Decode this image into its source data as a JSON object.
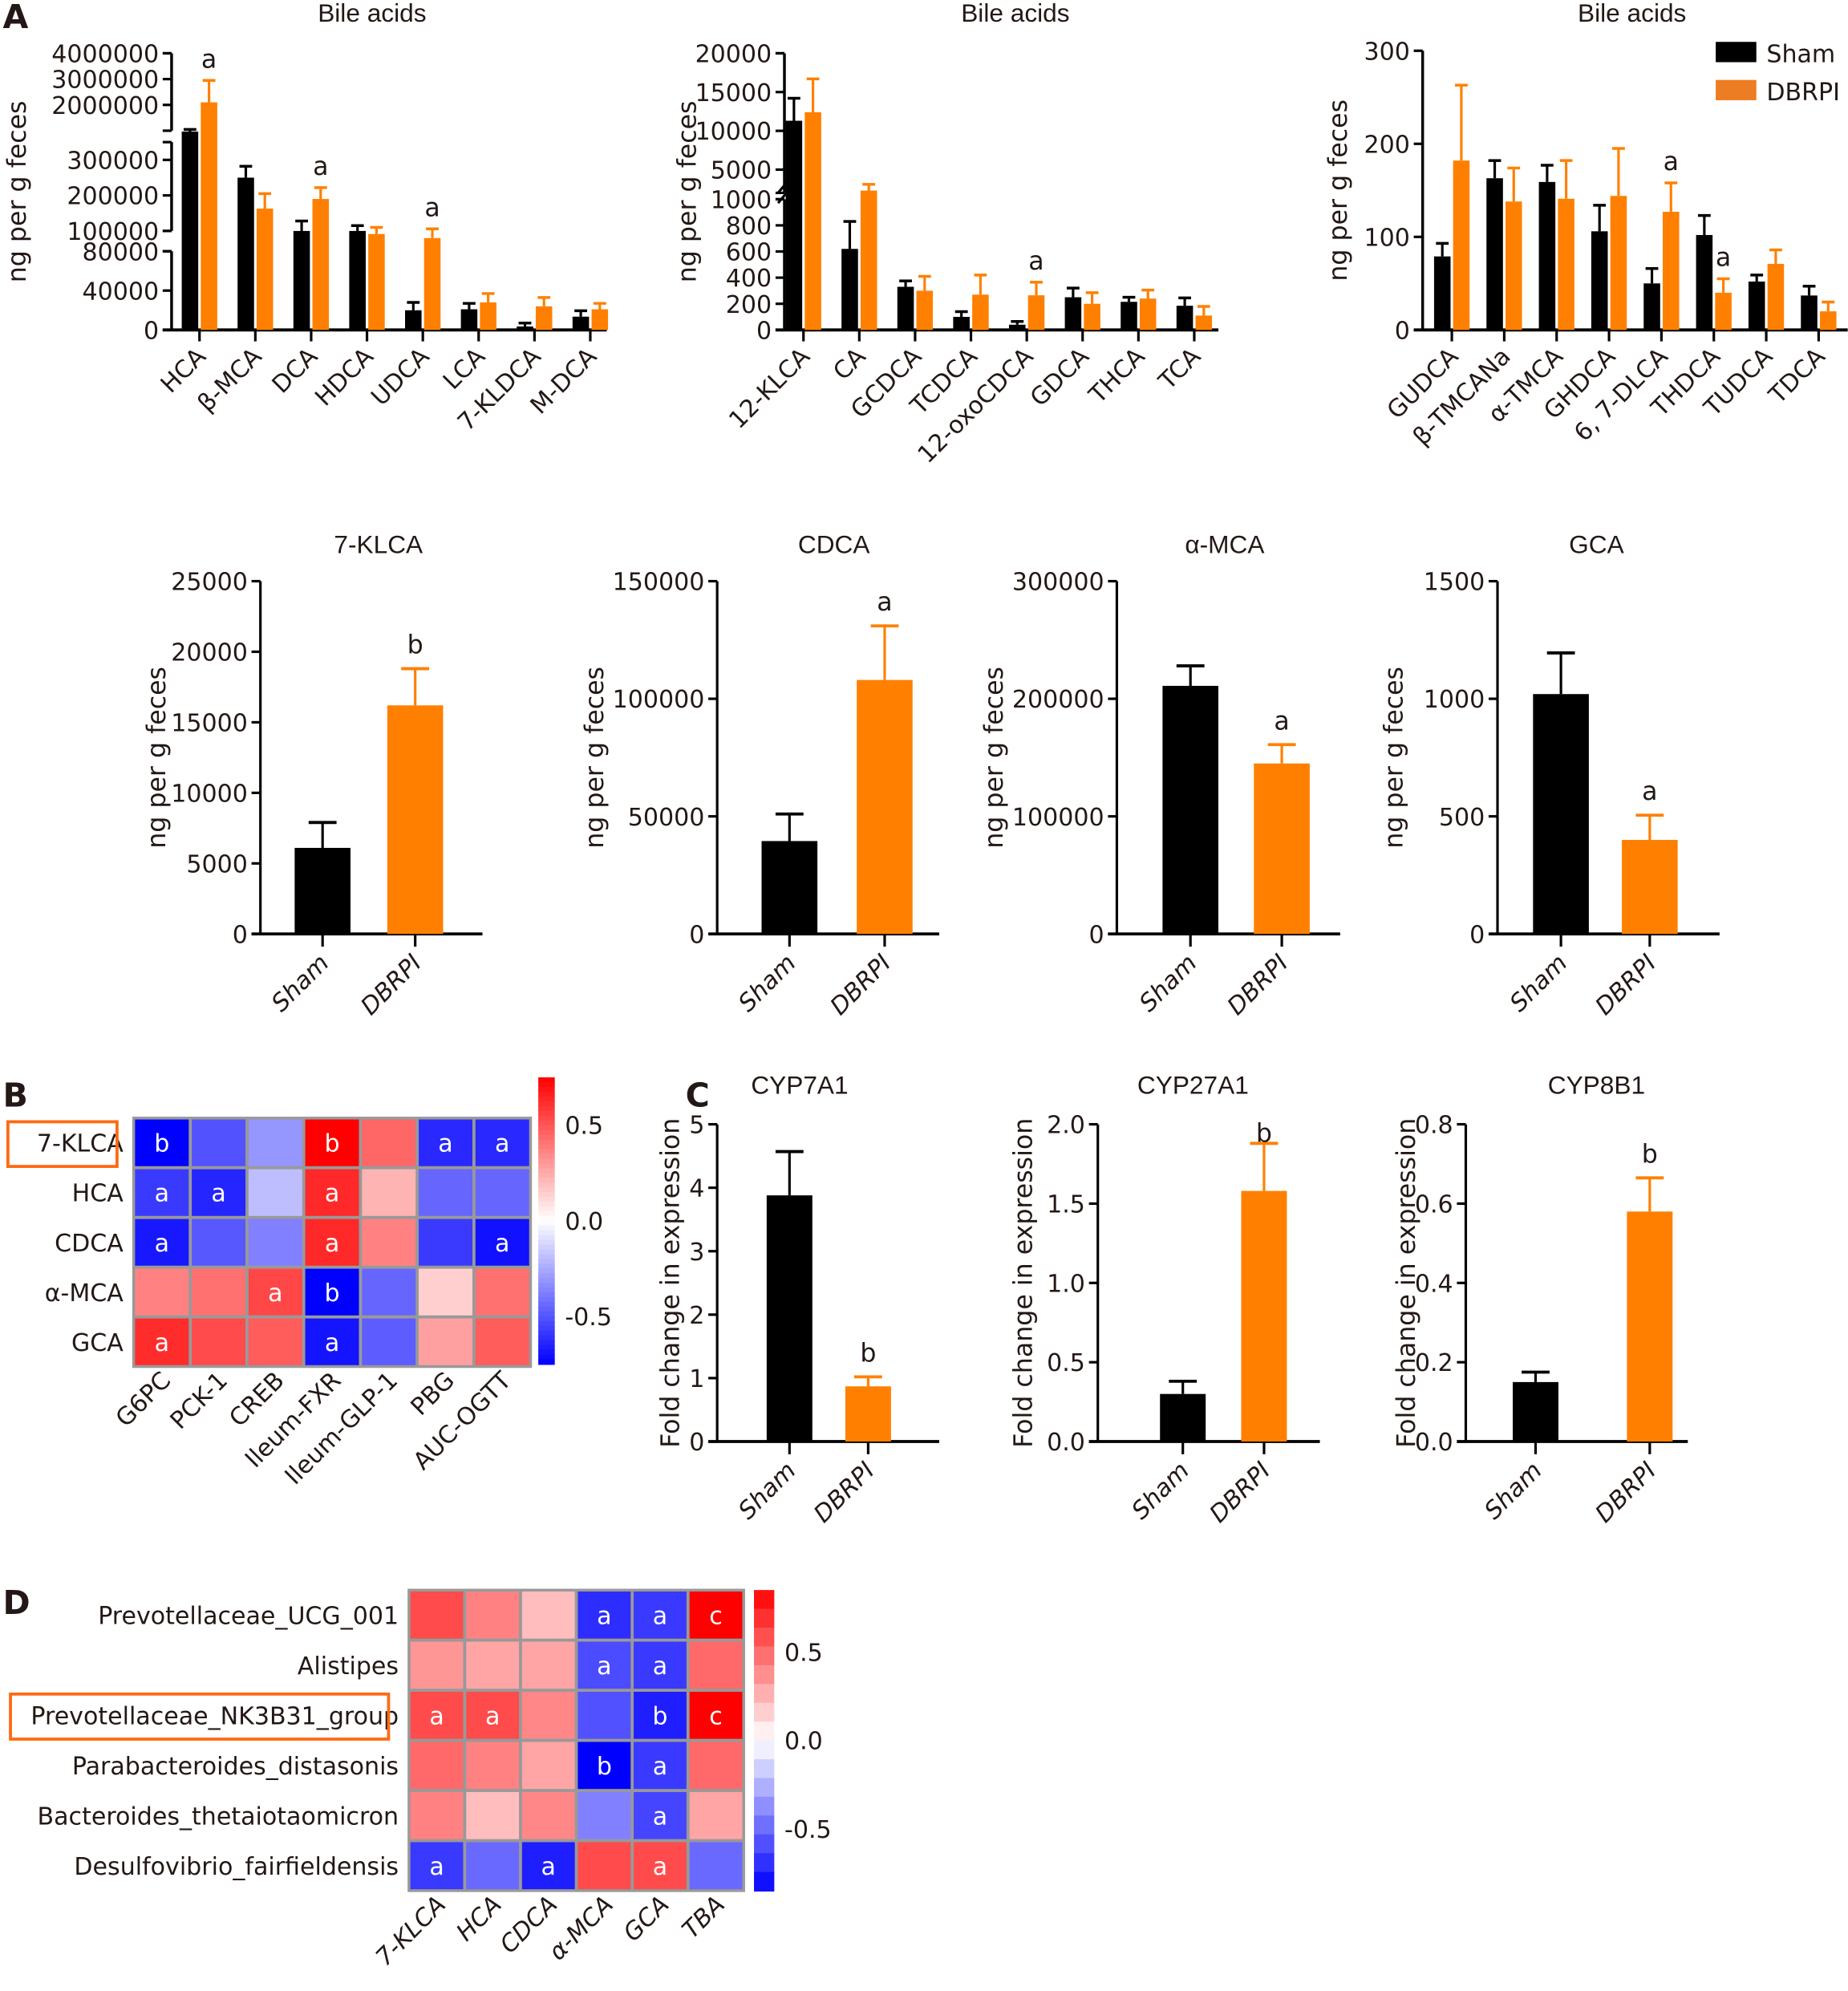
{
  "legend": {
    "series": [
      {
        "name": "Sham",
        "color": "#000000"
      },
      {
        "name": "DBRPI",
        "color": "#ff8000"
      }
    ]
  },
  "panels": {
    "A": "A",
    "B": "B",
    "C": "C",
    "D": "D"
  },
  "chart_data": [
    {
      "id": "A1",
      "type": "bar",
      "title": "Bile acids",
      "ylabel": "ng per g feces",
      "y_axis_segments": [
        {
          "range": [
            0,
            80000
          ],
          "ticks": [
            0,
            40000,
            80000
          ],
          "tick_labels": [
            "0",
            "40000",
            "80000"
          ]
        },
        {
          "range": [
            100000,
            350000
          ],
          "ticks": [
            100000,
            200000,
            300000
          ],
          "tick_labels": [
            "100000",
            "200000",
            "300000"
          ]
        },
        {
          "range": [
            1000000,
            4000000
          ],
          "ticks": [
            2000000,
            3000000,
            4000000
          ],
          "tick_labels": [
            "2000000",
            "3000000",
            "4000000"
          ]
        }
      ],
      "categories": [
        "HCA",
        "β-MCA",
        "DCA",
        "HDCA",
        "UDCA",
        "LCA",
        "7-KLDCA",
        "M-DCA"
      ],
      "series": [
        {
          "name": "Sham",
          "values": [
            950000,
            250000,
            100000,
            100000,
            20000,
            21000,
            3500,
            13500
          ],
          "error_upper": [
            1050000,
            282000,
            128000,
            115000,
            28000,
            27000,
            7000,
            19500
          ]
        },
        {
          "name": "DBRPI",
          "values": [
            2100000,
            163000,
            190000,
            97000,
            93000,
            28000,
            24000,
            21000
          ],
          "error_upper": [
            2950000,
            205000,
            222000,
            110000,
            106000,
            37000,
            33000,
            27000
          ]
        }
      ],
      "annotations": [
        {
          "category": "HCA",
          "series": "DBRPI",
          "text": "a"
        },
        {
          "category": "DCA",
          "series": "DBRPI",
          "text": "a"
        },
        {
          "category": "UDCA",
          "series": "DBRPI",
          "text": "a"
        }
      ]
    },
    {
      "id": "A2",
      "type": "bar",
      "title": "Bile acids",
      "ylabel": "ng per g feces",
      "y_axis_segments": [
        {
          "range": [
            0,
            1000
          ],
          "ticks": [
            0,
            200,
            400,
            600,
            800,
            1000
          ],
          "tick_labels": [
            "0",
            "200",
            "400",
            "600",
            "800",
            "1000"
          ]
        },
        {
          "range": [
            2000,
            20000
          ],
          "ticks": [
            5000,
            10000,
            15000,
            20000
          ],
          "tick_labels": [
            "5000",
            "10000",
            "15000",
            "20000"
          ]
        }
      ],
      "categories": [
        "12-KLCA",
        "CA",
        "GCDCA",
        "TCDCA",
        "12-oxoCDCA",
        "GDCA",
        "THCA",
        "TCA"
      ],
      "series": [
        {
          "name": "Sham",
          "values": [
            11300,
            620,
            330,
            100,
            40,
            250,
            215,
            185
          ],
          "error_upper": [
            14200,
            830,
            375,
            140,
            65,
            320,
            250,
            245
          ]
        },
        {
          "name": "DBRPI",
          "values": [
            12400,
            2300,
            300,
            270,
            265,
            200,
            240,
            110
          ],
          "error_upper": [
            16700,
            3100,
            410,
            420,
            365,
            285,
            305,
            180
          ]
        }
      ],
      "annotations": [
        {
          "category": "12-oxoCDCA",
          "series": "DBRPI",
          "text": "a"
        }
      ]
    },
    {
      "id": "A3",
      "type": "bar",
      "title": "Bile acids",
      "ylabel": "ng per g feces",
      "ylim": [
        0,
        300
      ],
      "yticks": [
        0,
        100,
        200,
        300
      ],
      "categories": [
        "GUDCA",
        "β-TMCANa",
        "α-TMCA",
        "GHDCA",
        "6, 7-DLCA",
        "THDCA",
        "TUDCA",
        "TDCA"
      ],
      "series": [
        {
          "name": "Sham",
          "values": [
            79,
            163,
            159,
            106,
            50,
            102,
            52,
            37
          ],
          "error_upper": [
            93,
            182,
            177,
            134,
            66,
            123,
            59,
            47
          ]
        },
        {
          "name": "DBRPI",
          "values": [
            182,
            138,
            141,
            144,
            127,
            40,
            71,
            20
          ],
          "error_upper": [
            263,
            174,
            182,
            195,
            158,
            55,
            86,
            30
          ]
        }
      ],
      "annotations": [
        {
          "category": "6, 7-DLCA",
          "series": "DBRPI",
          "text": "a"
        },
        {
          "category": "THDCA",
          "series": "DBRPI",
          "text": "a"
        }
      ],
      "legend": "top-right"
    },
    {
      "id": "A4",
      "type": "bar",
      "title": "7-KLCA",
      "ylabel": "ng per g feces",
      "ylim": [
        0,
        25000
      ],
      "yticks": [
        0,
        5000,
        10000,
        15000,
        20000,
        25000
      ],
      "categories": [
        "Sham",
        "DBRPI"
      ],
      "values": [
        6100,
        16200
      ],
      "error_upper": [
        7900,
        18800
      ],
      "annotations": [
        {
          "category": "DBRPI",
          "text": "b"
        }
      ]
    },
    {
      "id": "A5",
      "type": "bar",
      "title": "CDCA",
      "ylabel": "ng per g feces",
      "ylim": [
        0,
        150000
      ],
      "yticks": [
        0,
        50000,
        100000,
        150000
      ],
      "categories": [
        "Sham",
        "DBRPI"
      ],
      "values": [
        39500,
        108000
      ],
      "error_upper": [
        51000,
        131000
      ],
      "annotations": [
        {
          "category": "DBRPI",
          "text": "a"
        }
      ]
    },
    {
      "id": "A6",
      "type": "bar",
      "title": "α-MCA",
      "ylabel": "ng per g feces",
      "ylim": [
        0,
        300000
      ],
      "yticks": [
        0,
        100000,
        200000,
        300000
      ],
      "categories": [
        "Sham",
        "DBRPI"
      ],
      "values": [
        211000,
        145000
      ],
      "error_upper": [
        228000,
        161000
      ],
      "annotations": [
        {
          "category": "DBRPI",
          "text": "a"
        }
      ]
    },
    {
      "id": "A7",
      "type": "bar",
      "title": "GCA",
      "ylabel": "ng per g feces",
      "ylim": [
        0,
        1500
      ],
      "yticks": [
        0,
        500,
        1000,
        1500
      ],
      "categories": [
        "Sham",
        "DBRPI"
      ],
      "values": [
        1020,
        400
      ],
      "error_upper": [
        1195,
        505
      ],
      "annotations": [
        {
          "category": "DBRPI",
          "text": "a"
        }
      ]
    },
    {
      "id": "B",
      "type": "heatmap",
      "rows": [
        "7-KLCA",
        "HCA",
        "CDCA",
        "α-MCA",
        "GCA"
      ],
      "highlighted_row": "7-KLCA",
      "columns": [
        "G6PC",
        "PCK-1",
        "CREB",
        "Ileum-FXR",
        "Ileum-GLP-1",
        "PBG",
        "AUC-OGTT"
      ],
      "values": [
        [
          -0.75,
          -0.51,
          -0.31,
          0.75,
          0.45,
          -0.63,
          -0.63
        ],
        [
          -0.58,
          -0.64,
          -0.19,
          0.63,
          0.22,
          -0.45,
          -0.45
        ],
        [
          -0.68,
          -0.49,
          -0.37,
          0.63,
          0.37,
          -0.58,
          -0.7
        ],
        [
          0.37,
          0.42,
          0.54,
          -0.75,
          -0.45,
          0.14,
          0.42
        ],
        [
          0.62,
          0.53,
          0.48,
          -0.69,
          -0.48,
          0.28,
          0.48
        ]
      ],
      "labels": [
        [
          "b",
          "",
          "",
          "b",
          "",
          "a",
          "a"
        ],
        [
          "a",
          "a",
          "",
          "a",
          "",
          "",
          ""
        ],
        [
          "a",
          "",
          "",
          "a",
          "",
          "",
          "a"
        ],
        [
          "",
          "",
          "a",
          "b",
          "",
          "",
          ""
        ],
        [
          "a",
          "",
          "",
          "a",
          "",
          "",
          ""
        ]
      ],
      "colorbar": {
        "range": [
          -0.75,
          0.75
        ],
        "ticks": [
          0.5,
          0.0,
          -0.5
        ],
        "tick_labels": [
          "0.5",
          "0.0",
          "-0.5"
        ],
        "low_color": "#0000ff",
        "mid_color": "#ffffff",
        "high_color": "#ff0000"
      }
    },
    {
      "id": "C1",
      "type": "bar",
      "title": "CYP7A1",
      "ylabel": "Fold change in expression",
      "ylim": [
        0,
        5
      ],
      "yticks": [
        0,
        1,
        2,
        3,
        4,
        5
      ],
      "ytick_labels": [
        "0",
        "1",
        "2",
        "3",
        "4",
        "5"
      ],
      "categories": [
        "Sham",
        "DBRPI"
      ],
      "values": [
        3.88,
        0.87
      ],
      "error_upper": [
        4.57,
        1.02
      ],
      "annotations": [
        {
          "category": "DBRPI",
          "text": "b"
        }
      ]
    },
    {
      "id": "C2",
      "type": "bar",
      "title": "CYP27A1",
      "ylabel": "Fold change in expression",
      "ylim": [
        0,
        2
      ],
      "yticks": [
        0,
        0.5,
        1,
        1.5,
        2
      ],
      "ytick_labels": [
        "0.0",
        "0.5",
        "1.0",
        "1.5",
        "2.0"
      ],
      "categories": [
        "Sham",
        "DBRPI"
      ],
      "values": [
        0.3,
        1.58
      ],
      "error_upper": [
        0.38,
        1.88
      ],
      "annotations": [
        {
          "category": "DBRPI",
          "text": "b"
        }
      ]
    },
    {
      "id": "C3",
      "type": "bar",
      "title": "CYP8B1",
      "ylabel": "Fold change in expression",
      "ylim": [
        0,
        0.8
      ],
      "yticks": [
        0,
        0.2,
        0.4,
        0.6,
        0.8
      ],
      "ytick_labels": [
        "0.0",
        "0.2",
        "0.4",
        "0.6",
        "0.8"
      ],
      "categories": [
        "Sham",
        "DBRPI"
      ],
      "values": [
        0.15,
        0.58
      ],
      "error_upper": [
        0.175,
        0.665
      ],
      "annotations": [
        {
          "category": "DBRPI",
          "text": "b"
        }
      ]
    },
    {
      "id": "D",
      "type": "heatmap",
      "rows": [
        "Prevotellaceae_UCG_001",
        "Alistipes",
        "Prevotellaceae_NK3B31_group",
        "Parabacteroides_distasonis",
        "Bacteroides_thetaiotaomicron",
        "Desulfovibrio_fairfieldensis"
      ],
      "highlighted_row": "Prevotellaceae_NK3B31_group",
      "columns": [
        "7-KLCA",
        "HCA",
        "CDCA",
        "α-MCA",
        "GCA",
        "TBA"
      ],
      "values": [
        [
          0.6,
          0.42,
          0.22,
          -0.7,
          -0.66,
          0.85
        ],
        [
          0.35,
          0.3,
          0.3,
          -0.6,
          -0.66,
          0.5
        ],
        [
          0.6,
          0.6,
          0.4,
          -0.58,
          -0.75,
          0.85
        ],
        [
          0.5,
          0.42,
          0.3,
          -0.85,
          -0.66,
          0.5
        ],
        [
          0.42,
          0.22,
          0.4,
          -0.42,
          -0.62,
          0.3
        ],
        [
          -0.66,
          -0.5,
          -0.75,
          0.6,
          0.6,
          -0.5
        ]
      ],
      "labels": [
        [
          "",
          "",
          "",
          "a",
          "a",
          "c"
        ],
        [
          "",
          "",
          "",
          "a",
          "a",
          ""
        ],
        [
          "a",
          "a",
          "",
          "",
          "b",
          "c"
        ],
        [
          "",
          "",
          "",
          "b",
          "a",
          ""
        ],
        [
          "",
          "",
          "",
          "",
          "a",
          ""
        ],
        [
          "a",
          "",
          "a",
          "",
          "a",
          ""
        ]
      ],
      "colorbar": {
        "range": [
          -0.85,
          0.85
        ],
        "ticks": [
          0.5,
          0.0,
          -0.5
        ],
        "tick_labels": [
          "0.5",
          "0.0",
          "-0.5"
        ],
        "low_color": "#0000ff",
        "mid_color": "#ffffff",
        "high_color": "#ff0000",
        "steps": 16
      }
    }
  ],
  "colors": {
    "sham": "#000000",
    "dbrpi": "#ff8000",
    "highlight_box": "#ff6a13",
    "grid": "#999999"
  }
}
